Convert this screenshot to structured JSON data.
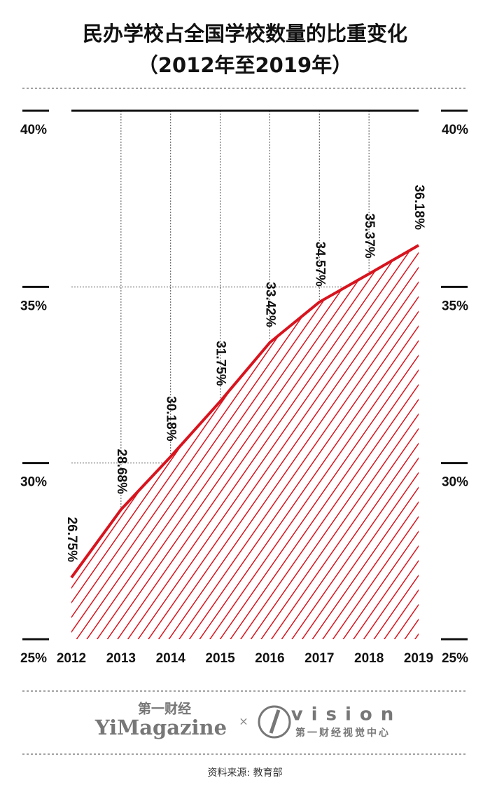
{
  "chart_data": {
    "type": "area",
    "title": "民办学校占全国学校数量的比重变化",
    "subtitle": "（2012年至2019年）",
    "categories": [
      "2012",
      "2013",
      "2014",
      "2015",
      "2016",
      "2017",
      "2018",
      "2019"
    ],
    "values": [
      26.75,
      28.68,
      30.18,
      31.75,
      33.42,
      34.57,
      35.37,
      36.18
    ],
    "value_labels": [
      "26.75%",
      "28.68%",
      "30.18%",
      "31.75%",
      "33.42%",
      "34.57%",
      "35.37%",
      "36.18%"
    ],
    "color": "#d7141e",
    "ylim": [
      25,
      40
    ],
    "yticks": [
      {
        "value": 25,
        "label": "25%"
      },
      {
        "value": 30,
        "label": "30%"
      },
      {
        "value": 35,
        "label": "35%"
      },
      {
        "value": 40,
        "label": "40%"
      }
    ],
    "grid": true
  },
  "branding": {
    "left_top": "第一财经",
    "left": "YiMagazine",
    "separator": "×",
    "right": "vision",
    "right_sub": "第一财经视觉中心"
  },
  "source": "资料来源: 教育部"
}
